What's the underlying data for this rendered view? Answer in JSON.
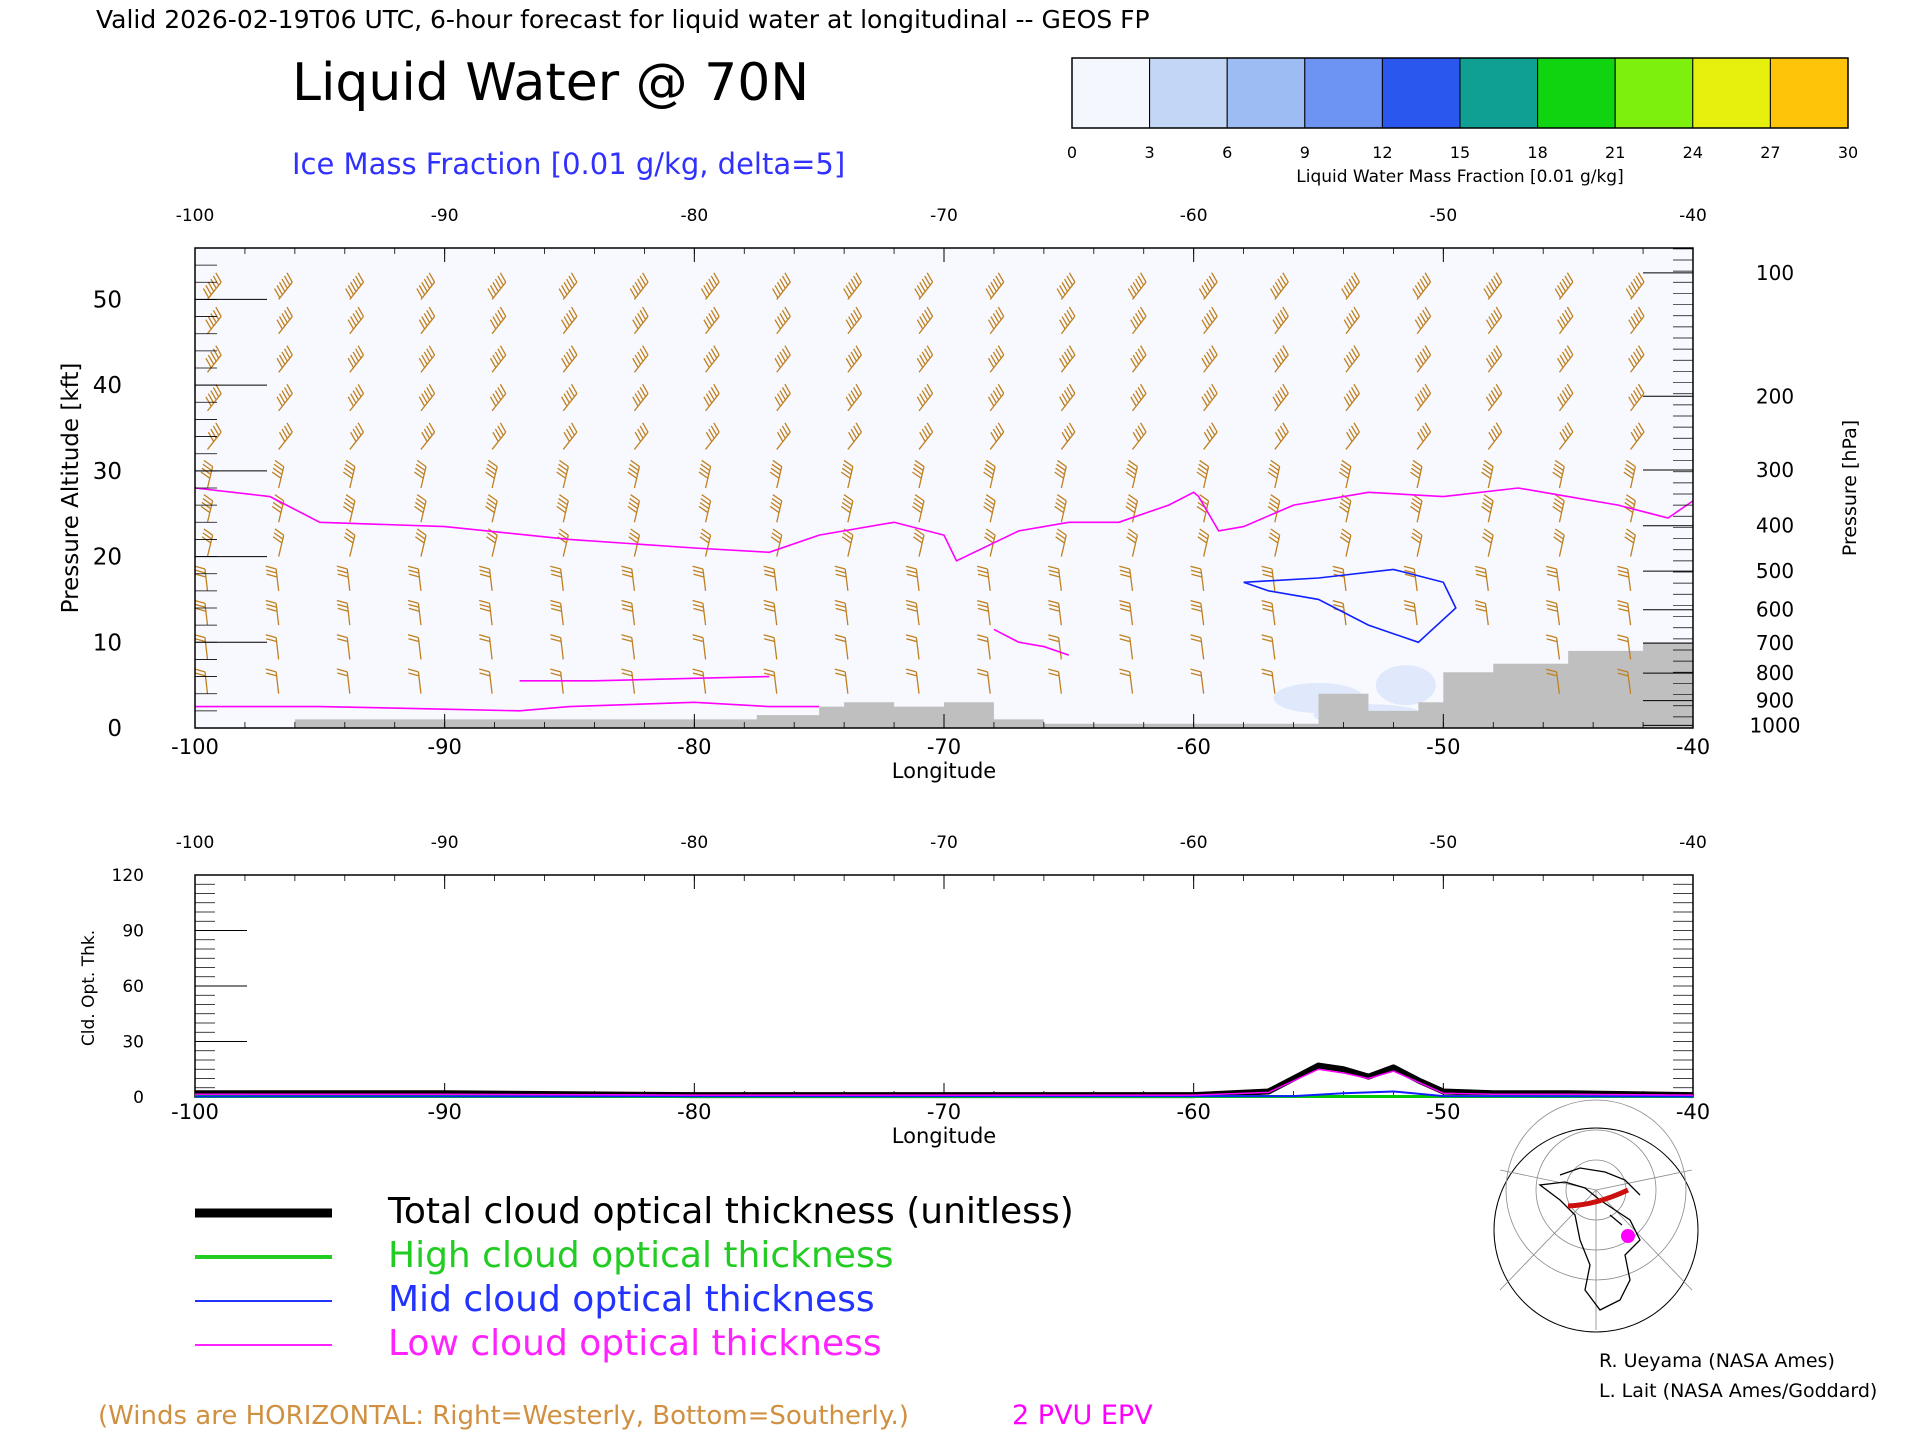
{
  "header": {
    "valid_line": "Valid 2026-02-19T06 UTC, 6-hour forecast for liquid water at longitudinal -- GEOS FP",
    "title": "Liquid Water @ 70N",
    "subtitle": "Ice Mass Fraction [0.01 g/kg, delta=5]"
  },
  "colorbar": {
    "ticks": [
      "0",
      "3",
      "6",
      "9",
      "12",
      "15",
      "18",
      "21",
      "24",
      "27",
      "30"
    ],
    "label": "Liquid Water Mass Fraction [0.01 g/kg]",
    "colors": [
      "#f4f7fd",
      "#c4d6f5",
      "#9cbcf3",
      "#6d94f2",
      "#2a58ee",
      "#0fa093",
      "#10d40f",
      "#7ef00e",
      "#e7f00c",
      "#fdc40a",
      "#fd7e08"
    ]
  },
  "chart_data": [
    {
      "type": "line",
      "title": "Liquid Water @ 70N",
      "xlabel": "Longitude",
      "ylabel": "Pressure Altitude [kft]",
      "ylabel_right": "Pressure [hPa]",
      "xlim": [
        -100,
        -40
      ],
      "ylim": [
        0,
        56
      ],
      "x_ticks": [
        "-100",
        "-90",
        "-80",
        "-70",
        "-60",
        "-50",
        "-40"
      ],
      "y_ticks": [
        "0",
        "10",
        "20",
        "30",
        "40",
        "50"
      ],
      "pressure_ticks": [
        "100",
        "200",
        "300",
        "400",
        "500",
        "600",
        "700",
        "800",
        "900",
        "1000"
      ],
      "pressure_tick_alt_kft": [
        53.1,
        38.7,
        30.1,
        23.6,
        18.3,
        13.8,
        9.9,
        6.4,
        3.2,
        0.3
      ],
      "series": [
        {
          "name": "2 PVU EPV",
          "color": "#ff00ff",
          "x": [
            -100,
            -97,
            -95,
            -90,
            -85,
            -80,
            -77,
            -75,
            -72,
            -70,
            -69.5,
            -67,
            -65,
            -63,
            -61,
            -60,
            -59.8,
            -59,
            -58,
            -56,
            -53,
            -50,
            -47,
            -45,
            -43,
            -41,
            -40
          ],
          "y": [
            28,
            27,
            24,
            23.5,
            22,
            21,
            20.5,
            22.5,
            24,
            22.5,
            19.5,
            23,
            24,
            24,
            26,
            27.5,
            27,
            23,
            23.5,
            26,
            27.5,
            27,
            28,
            27,
            26,
            24.5,
            26.5
          ]
        },
        {
          "name": "Ice Mass Fraction contour",
          "color": "#1020ff",
          "x": [
            -58,
            -55,
            -52,
            -50,
            -49.5,
            -51,
            -53,
            -55,
            -57,
            -58
          ],
          "y": [
            17,
            17.5,
            18.5,
            17,
            14,
            10,
            12,
            15,
            16,
            17
          ]
        }
      ],
      "low_level_contours": [
        {
          "color": "#ff00ff",
          "x": [
            -100,
            -95,
            -90,
            -87,
            -85,
            -80,
            -77,
            -75
          ],
          "y": [
            2.5,
            2.5,
            2.2,
            2.0,
            2.5,
            3.0,
            2.5,
            2.5
          ]
        },
        {
          "color": "#ff00ff",
          "x": [
            -87,
            -84,
            -80,
            -77
          ],
          "y": [
            5.5,
            5.5,
            5.8,
            6.0
          ]
        },
        {
          "color": "#ff00ff",
          "x": [
            -68,
            -67,
            -66,
            -65
          ],
          "y": [
            11.5,
            10,
            9.5,
            8.5
          ]
        }
      ],
      "terrain": {
        "color": "#bfbfbf",
        "x": [
          -96,
          -92,
          -77.5,
          -75,
          -74,
          -72,
          -70,
          -68,
          -66,
          -55,
          -53,
          -51,
          -50,
          -48,
          -45,
          -42,
          -40
        ],
        "y": [
          1.0,
          1.0,
          1.5,
          2.5,
          3.0,
          2.5,
          3.0,
          1.0,
          0.5,
          4.0,
          2.0,
          3.0,
          6.5,
          7.5,
          9.0,
          10.0,
          12.0
        ]
      },
      "wind_barbs": "present"
    },
    {
      "type": "line",
      "xlabel": "Longitude",
      "ylabel": "Cld. Opt. Thk.",
      "xlim": [
        -100,
        -40
      ],
      "ylim": [
        0,
        120
      ],
      "x_ticks": [
        "-100",
        "-90",
        "-80",
        "-70",
        "-60",
        "-50",
        "-40"
      ],
      "y_ticks": [
        "0",
        "30",
        "60",
        "90",
        "120"
      ],
      "series": [
        {
          "name": "Total cloud optical thickness (unitless)",
          "color": "#000000",
          "x": [
            -100,
            -90,
            -80,
            -70,
            -60,
            -57,
            -55,
            -54,
            -53,
            -52,
            -51,
            -50,
            -48,
            -45,
            -40
          ],
          "y": [
            2,
            2,
            1,
            1,
            1,
            3,
            17,
            15,
            11,
            16,
            9,
            3,
            2,
            2,
            1
          ]
        },
        {
          "name": "High cloud optical thickness",
          "color": "#00cc00",
          "x": [
            -100,
            -40
          ],
          "y": [
            0.3,
            0.3
          ]
        },
        {
          "name": "Mid cloud optical thickness",
          "color": "#1020ff",
          "x": [
            -100,
            -56,
            -54,
            -52,
            -50,
            -40
          ],
          "y": [
            0.3,
            0.5,
            2,
            3,
            0.5,
            0.3
          ]
        },
        {
          "name": "Low cloud optical thickness",
          "color": "#ff00ff",
          "x": [
            -100,
            -90,
            -80,
            -70,
            -60,
            -57,
            -55,
            -54,
            -53,
            -52,
            -51,
            -50,
            -48,
            -45,
            -40
          ],
          "y": [
            1.5,
            1.5,
            1,
            1,
            1,
            2.5,
            15,
            13,
            10,
            14,
            8,
            2,
            1.5,
            1.5,
            1
          ]
        }
      ]
    }
  ],
  "legend": {
    "items": [
      {
        "label": "Total cloud optical thickness (unitless)",
        "color": "#000000"
      },
      {
        "label": "High cloud optical thickness",
        "color": "#22cc22"
      },
      {
        "label": "Mid cloud optical thickness",
        "color": "#2233ff"
      },
      {
        "label": "Low cloud optical thickness",
        "color": "#ff22ff"
      }
    ]
  },
  "footer": {
    "winds_note": "(Winds are HORIZONTAL: Right=Westerly, Bottom=Southerly.)",
    "pvu_label": "2 PVU EPV",
    "credit1": "R. Ueyama (NASA Ames)",
    "credit2": "L. Lait (NASA Ames/Goddard)"
  },
  "colors": {
    "wind": "#c08020",
    "pvu": "#ff00ff",
    "ice": "#1020ff",
    "subtitle": "#3030ff",
    "winds_note": "#d09040"
  }
}
